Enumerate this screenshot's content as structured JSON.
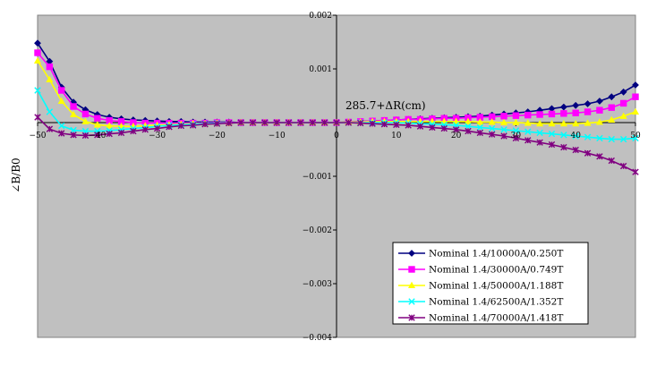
{
  "chart_data": {
    "type": "line",
    "title": "",
    "xlabel": "",
    "ylabel": "∠B/B0",
    "annotation": "285.7+ΔR(cm)",
    "xlim": [
      -50,
      50
    ],
    "ylim": [
      -0.004,
      0.002
    ],
    "x_ticks": [
      -50,
      -40,
      -30,
      -20,
      -10,
      0,
      10,
      20,
      30,
      40,
      50
    ],
    "y_ticks": [
      0.002,
      0.001,
      0,
      -0.001,
      -0.002,
      -0.003,
      -0.004
    ],
    "x_tick_labels": [
      "−50",
      "−40",
      "−30",
      "−20",
      "−10",
      "0",
      "10",
      "20",
      "30",
      "40",
      "50"
    ],
    "y_tick_labels": [
      "0.002",
      "0.001",
      "",
      "−0.001",
      "−0.002",
      "−0.003",
      "−0.004"
    ],
    "grid": false,
    "legend_position": "bottom-right",
    "plot_background": "#c0c0c0",
    "x": [
      -50,
      -48,
      -46,
      -44,
      -42,
      -40,
      -38,
      -36,
      -34,
      -32,
      -30,
      -28,
      -26,
      -24,
      -22,
      -20,
      -18,
      -16,
      -14,
      -12,
      -10,
      -8,
      -6,
      -4,
      -2,
      0,
      2,
      4,
      6,
      8,
      10,
      12,
      14,
      16,
      18,
      20,
      22,
      24,
      26,
      28,
      30,
      32,
      34,
      36,
      38,
      40,
      42,
      44,
      46,
      48,
      50
    ],
    "series": [
      {
        "name": "Nominal 1.4/10000A/0.250T",
        "color": "#000080",
        "marker": "diamond",
        "values": [
          0.00148,
          0.00114,
          0.00066,
          0.00038,
          0.00024,
          0.00015,
          0.0001,
          7e-05,
          5e-05,
          4e-05,
          3e-05,
          2e-05,
          2e-05,
          1e-05,
          1e-05,
          1e-05,
          1e-05,
          0.0,
          0.0,
          0.0,
          0.0,
          0.0,
          0.0,
          0.0,
          0.0,
          0.0,
          1e-05,
          2e-05,
          3e-05,
          4e-05,
          5e-05,
          6e-05,
          7e-05,
          8e-05,
          9e-05,
          0.0001,
          0.00011,
          0.00012,
          0.00014,
          0.00016,
          0.00018,
          0.0002,
          0.00023,
          0.00026,
          0.00029,
          0.00032,
          0.00035,
          0.0004,
          0.00048,
          0.00057,
          0.0007
        ]
      },
      {
        "name": "Nominal 1.4/30000A/0.749T",
        "color": "#ff00ff",
        "marker": "square",
        "values": [
          0.0013,
          0.00104,
          0.0006,
          0.0003,
          0.00016,
          8e-05,
          4e-05,
          2e-05,
          0.0,
          -1e-05,
          -1e-05,
          -1e-05,
          -1e-05,
          -1e-05,
          -1e-05,
          0.0,
          0.0,
          0.0,
          0.0,
          0.0,
          0.0,
          0.0,
          0.0,
          0.0,
          0.0,
          0.0,
          1e-05,
          2e-05,
          3e-05,
          4e-05,
          5e-05,
          6e-05,
          6e-05,
          7e-05,
          8e-05,
          8e-05,
          9e-05,
          0.0001,
          0.00011,
          0.00012,
          0.00013,
          0.00014,
          0.00015,
          0.00016,
          0.00017,
          0.00018,
          0.0002,
          0.00023,
          0.00028,
          0.00036,
          0.00048
        ]
      },
      {
        "name": "Nominal 1.4/50000A/1.188T",
        "color": "#ffff00",
        "marker": "triangle",
        "values": [
          0.00115,
          0.0008,
          0.0004,
          0.00015,
          2e-05,
          -4e-05,
          -6e-05,
          -7e-05,
          -7e-05,
          -6e-05,
          -5e-05,
          -4e-05,
          -3e-05,
          -2e-05,
          -2e-05,
          -1e-05,
          -1e-05,
          0.0,
          0.0,
          0.0,
          0.0,
          0.0,
          0.0,
          0.0,
          0.0,
          0.0,
          1e-05,
          1e-05,
          2e-05,
          2e-05,
          2e-05,
          2e-05,
          2e-05,
          2e-05,
          2e-05,
          2e-05,
          2e-05,
          1e-05,
          1e-05,
          0.0,
          0.0,
          -1e-05,
          -2e-05,
          -2e-05,
          -2e-05,
          -2e-05,
          -1e-05,
          1e-05,
          5e-05,
          0.00012,
          0.0002
        ]
      },
      {
        "name": "Nominal 1.4/62500A/1.352T",
        "color": "#00ffff",
        "marker": "x",
        "values": [
          0.0006,
          0.0002,
          -6e-05,
          -0.00014,
          -0.00016,
          -0.00016,
          -0.00015,
          -0.00013,
          -0.00011,
          -9e-05,
          -7e-05,
          -5e-05,
          -4e-05,
          -3e-05,
          -2e-05,
          -1e-05,
          -1e-05,
          0.0,
          0.0,
          0.0,
          0.0,
          0.0,
          0.0,
          0.0,
          0.0,
          0.0,
          0.0,
          0.0,
          0.0,
          0.0,
          0.0,
          -1e-05,
          -2e-05,
          -3e-05,
          -4e-05,
          -5e-05,
          -7e-05,
          -9e-05,
          -0.00011,
          -0.00013,
          -0.00015,
          -0.00017,
          -0.00019,
          -0.00021,
          -0.00023,
          -0.00025,
          -0.00027,
          -0.00029,
          -0.00031,
          -0.00031,
          -0.00029
        ]
      },
      {
        "name": "Nominal 1.4/70000A/1.418T",
        "color": "#800080",
        "marker": "star",
        "values": [
          0.0001,
          -0.00012,
          -0.0002,
          -0.00023,
          -0.00024,
          -0.00023,
          -0.00021,
          -0.00019,
          -0.00016,
          -0.00013,
          -0.00011,
          -8e-05,
          -6e-05,
          -5e-05,
          -3e-05,
          -2e-05,
          -1e-05,
          0.0,
          0.0,
          0.0,
          0.0,
          0.0,
          0.0,
          0.0,
          0.0,
          0.0,
          0.0,
          -1e-05,
          -2e-05,
          -3e-05,
          -4e-05,
          -5e-05,
          -7e-05,
          -9e-05,
          -0.00011,
          -0.00013,
          -0.00016,
          -0.00019,
          -0.00022,
          -0.00025,
          -0.00029,
          -0.00033,
          -0.00037,
          -0.00041,
          -0.00046,
          -0.00051,
          -0.00057,
          -0.00063,
          -0.00071,
          -0.00081,
          -0.00092
        ]
      }
    ]
  }
}
